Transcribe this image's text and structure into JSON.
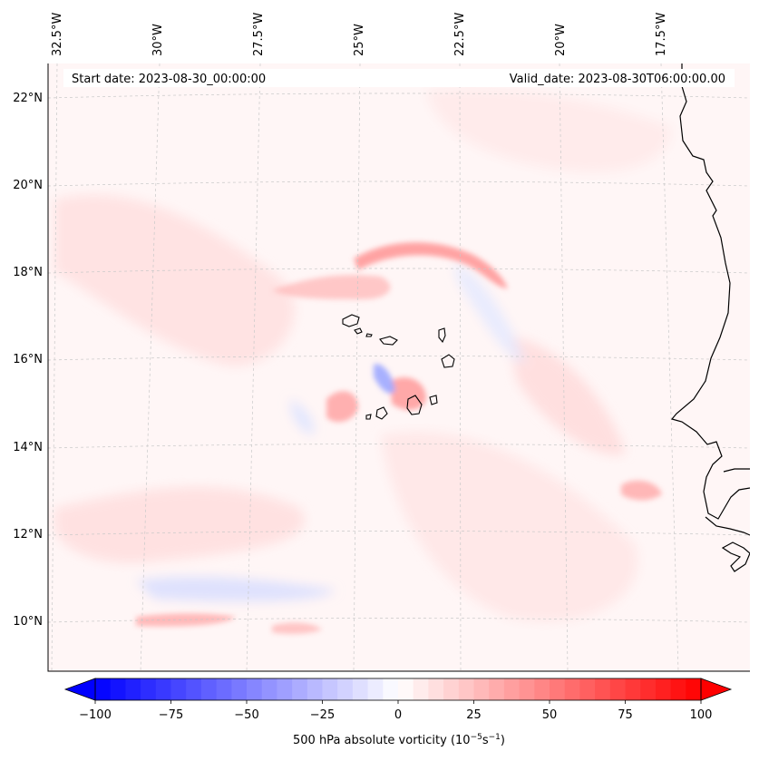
{
  "map": {
    "start_date_label": "Start date: 2023-08-30_00:00:00",
    "valid_date_label": "Valid_date: 2023-08-30T06:00:00.00",
    "longitude_labels": [
      "32.5°W",
      "30°W",
      "27.5°W",
      "25°W",
      "22.5°W",
      "20°W",
      "17.5°W"
    ],
    "latitude_labels": [
      "22°N",
      "20°N",
      "18°N",
      "16°N",
      "14°N",
      "12°N",
      "10°N"
    ],
    "field": "500 hPa absolute vorticity",
    "colors": {
      "negative": "#0000ff",
      "neutral": "#ffffff",
      "positive": "#ff0000",
      "coastline": "#000000"
    }
  },
  "colorbar": {
    "tick_labels": [
      "−100",
      "−75",
      "−50",
      "−25",
      "0",
      "25",
      "50",
      "75",
      "100"
    ],
    "label_text": "500 hPa absolute vorticity (",
    "label_unit_base": "10",
    "label_unit_exp": "−5",
    "label_unit_s": "s",
    "label_unit_sexp": "−1",
    "label_close": ")",
    "vmin": -100,
    "vmax": 100,
    "extend": "both",
    "cmap": "bwr"
  }
}
